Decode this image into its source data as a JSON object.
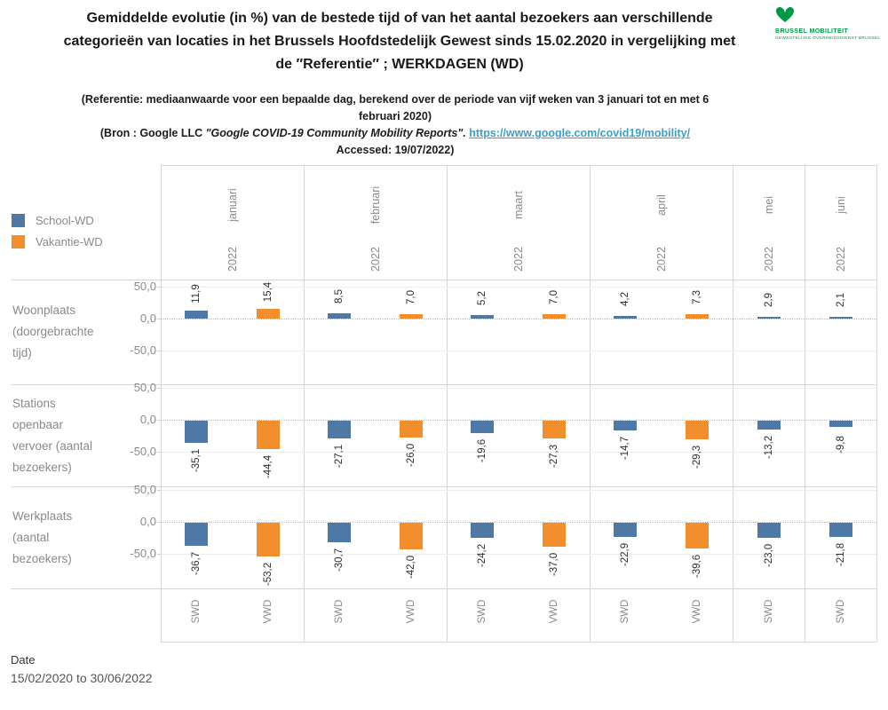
{
  "header": {
    "title_lines": [
      "Gemiddelde evolutie (in %) van de bestede tijd of van het aantal bezoekers aan verschillende",
      "categorieën van locaties in het Brussels Hoofdstedelijk Gewest sinds 15.02.2020 in vergelijking met",
      "de ″Referentie″  ; WERKDAGEN (WD)"
    ],
    "logo": {
      "name": "BRUSSEL MOBILITEIT",
      "tagline": "GEWESTELIJKE OVERHEIDSDIENST BRUSSEL",
      "color": "#009845"
    },
    "subtitle": {
      "reference_line1": "(Referentie: mediaanwaarde voor een bepaalde dag, berekend over de periode van vijf weken van 3 januari tot en met 6",
      "reference_line2": "februari 2020)",
      "bron_prefix": "(Bron : Google LLC ",
      "bron_italic": "\"Google COVID-19 Community Mobility Reports\". ",
      "bron_link": "https://www.google.com/covid19/mobility/",
      "accessed": "Accessed: 19/07/2022)",
      "link_color": "#3ba0c9"
    }
  },
  "legend": {
    "items": [
      {
        "label": "School-WD",
        "color": "#4e79a7"
      },
      {
        "label": "Vakantie-WD",
        "color": "#f28e2b"
      }
    ]
  },
  "footer": {
    "label": "Date",
    "value": "15/02/2020 to 30/06/2022"
  },
  "chart_data": {
    "type": "bar",
    "unit": "%",
    "grid": true,
    "legend_position": "top-left",
    "yticks": [
      "50,0",
      "0,0",
      "-50,0"
    ],
    "ylim": [
      -100,
      60
    ],
    "series": [
      {
        "name": "School-WD",
        "key": "SWD",
        "color": "#4e79a7"
      },
      {
        "name": "Vakantie-WD",
        "key": "VWD",
        "color": "#f28e2b"
      }
    ],
    "columns": [
      {
        "month": "januari",
        "year": "2022",
        "slots": [
          "SWD",
          "VWD"
        ]
      },
      {
        "month": "februari",
        "year": "2022",
        "slots": [
          "SWD",
          "VWD"
        ]
      },
      {
        "month": "maart",
        "year": "2022",
        "slots": [
          "SWD",
          "VWD"
        ]
      },
      {
        "month": "april",
        "year": "2022",
        "slots": [
          "SWD",
          "VWD"
        ]
      },
      {
        "month": "mei",
        "year": "2022",
        "slots": [
          "SWD"
        ]
      },
      {
        "month": "juni",
        "year": "2022",
        "slots": [
          "SWD"
        ]
      }
    ],
    "rows": [
      {
        "label_lines": [
          "Woonplaats",
          "(doorgebrachte",
          "tijd)"
        ],
        "label": "Woonplaats (doorgebrachte tijd)",
        "values": [
          [
            11.9,
            15.4
          ],
          [
            8.5,
            7.0
          ],
          [
            5.2,
            7.0
          ],
          [
            4.2,
            7.3
          ],
          [
            2.9
          ],
          [
            2.1
          ]
        ]
      },
      {
        "label_lines": [
          "Stations",
          "openbaar",
          "vervoer (aantal",
          "bezoekers)"
        ],
        "label": "Stations openbaar vervoer (aantal bezoekers)",
        "values": [
          [
            -35.1,
            -44.4
          ],
          [
            -27.1,
            -26.0
          ],
          [
            -19.6,
            -27.3
          ],
          [
            -14.7,
            -29.3
          ],
          [
            -13.2
          ],
          [
            -9.8
          ]
        ]
      },
      {
        "label_lines": [
          "Werkplaats",
          "(aantal",
          "bezoekers)"
        ],
        "label": "Werkplaats (aantal bezoekers)",
        "values": [
          [
            -36.7,
            -53.2
          ],
          [
            -30.7,
            -42.0
          ],
          [
            -24.2,
            -37.0
          ],
          [
            -22.9,
            -39.6
          ],
          [
            -23.0
          ],
          [
            -21.8
          ]
        ]
      }
    ]
  }
}
